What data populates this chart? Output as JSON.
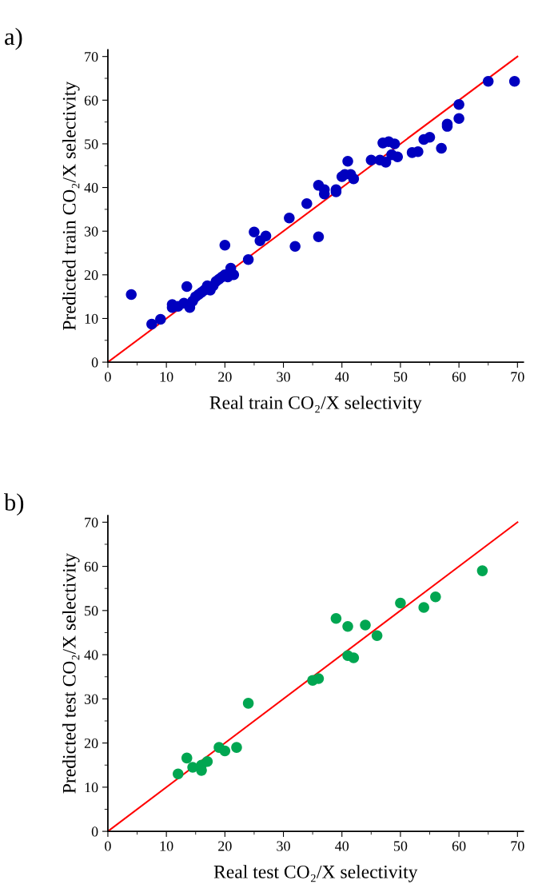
{
  "chart_data": [
    {
      "type": "scatter",
      "title": "a)",
      "xlabel": "Real train CO₂/X selectivity",
      "ylabel": "Predicted train CO₂/X selectivity",
      "xlim": [
        0,
        71
      ],
      "ylim": [
        0,
        71.5
      ],
      "xticks": [
        0,
        10,
        20,
        30,
        40,
        50,
        60,
        70
      ],
      "yticks": [
        0,
        10,
        20,
        30,
        40,
        50,
        60,
        70
      ],
      "grid": false,
      "legend": false,
      "marker": "circle",
      "series": [
        {
          "color": "#0000bf",
          "x": [
            4,
            7.5,
            9,
            11,
            11,
            12,
            13,
            13.5,
            14,
            14.5,
            15,
            15.5,
            16,
            16.5,
            17,
            17.5,
            18,
            18.5,
            19,
            19.5,
            20,
            20,
            20.5,
            21,
            21.5,
            24,
            25,
            26,
            27,
            31,
            32,
            34,
            36,
            36,
            37,
            37,
            39,
            39,
            40,
            40.5,
            41,
            41.5,
            42,
            45,
            46.5,
            47,
            47.5,
            48,
            48.5,
            49,
            49.5,
            52,
            53,
            54,
            55,
            57,
            58,
            58,
            60,
            60,
            65,
            69.5
          ],
          "values": [
            15.5,
            8.7,
            9.8,
            12.5,
            13.2,
            12.8,
            13.5,
            17.3,
            12.5,
            14,
            15,
            15.5,
            16,
            16.5,
            17.5,
            16.5,
            17.5,
            18.5,
            19,
            19.5,
            20,
            26.8,
            19.5,
            21.5,
            20,
            23.5,
            29.8,
            27.8,
            28.9,
            33,
            26.5,
            36.3,
            40.5,
            28.7,
            38.5,
            39.5,
            39,
            39.5,
            42.5,
            43,
            46,
            43,
            42,
            46.3,
            46.3,
            50.2,
            45.8,
            50.5,
            47.5,
            50,
            47,
            48,
            48.2,
            51,
            51.5,
            49,
            54.5,
            54,
            59,
            55.8,
            64.3,
            64.3
          ]
        },
        {
          "type": "line",
          "marker": "none",
          "line_style": "solid",
          "color": "#ff0000",
          "x": [
            0,
            70
          ],
          "values": [
            0,
            70
          ]
        }
      ]
    },
    {
      "type": "scatter",
      "title": "b)",
      "xlabel": "Real test CO₂/X selectivity",
      "ylabel": "Predicted test CO₂/X selectivity",
      "xlim": [
        0,
        71
      ],
      "ylim": [
        0,
        71.5
      ],
      "xticks": [
        0,
        10,
        20,
        30,
        40,
        50,
        60,
        70
      ],
      "yticks": [
        0,
        10,
        20,
        30,
        40,
        50,
        60,
        70
      ],
      "grid": false,
      "legend": false,
      "marker": "circle",
      "series": [
        {
          "color": "#00a651",
          "x": [
            12,
            13.5,
            14.5,
            16,
            16,
            17,
            19,
            20,
            22,
            24,
            35,
            36,
            39,
            41,
            41,
            42,
            44,
            46,
            50,
            54,
            56,
            64
          ],
          "values": [
            13,
            16.6,
            14.5,
            13.8,
            15,
            15.8,
            19,
            18.2,
            19,
            29,
            34.2,
            34.6,
            48.2,
            46.4,
            39.8,
            39.3,
            46.7,
            44.3,
            51.7,
            50.7,
            53.1,
            59
          ]
        },
        {
          "type": "line",
          "marker": "none",
          "line_style": "solid",
          "color": "#ff0000",
          "x": [
            0,
            70
          ],
          "values": [
            0,
            70
          ]
        }
      ]
    }
  ]
}
